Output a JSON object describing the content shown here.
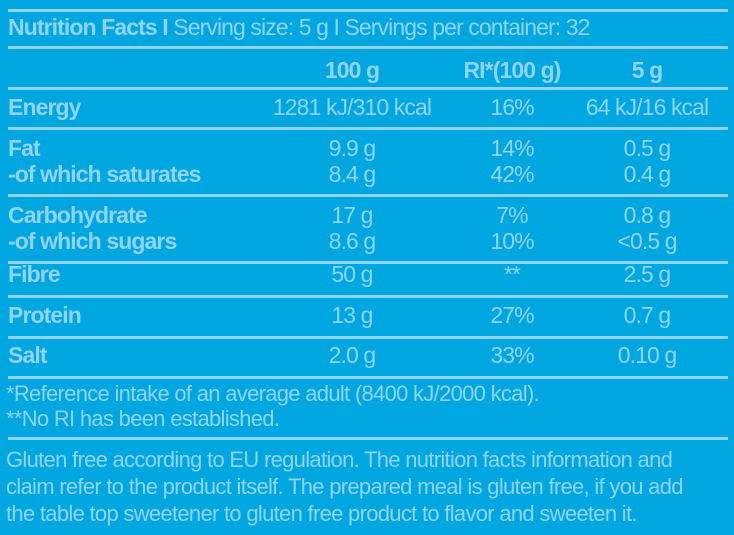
{
  "title": {
    "bold": "Nutrition Facts I",
    "rest": " Serving size: 5 g I Servings per container: 32"
  },
  "columns": [
    "100 g",
    "RI*(100 g)",
    "5 g"
  ],
  "rows": [
    {
      "label": "Energy",
      "v100": "1281 kJ/310 kcal",
      "ri": "16%",
      "v5": "64 kJ/16 kcal"
    },
    {
      "label": "Fat",
      "v100": "9.9 g",
      "ri": "14%",
      "v5": "0.5 g"
    },
    {
      "label": "-of which saturates",
      "v100": "8.4 g",
      "ri": "42%",
      "v5": "0.4 g"
    },
    {
      "label": "Carbohydrate",
      "v100": "17 g",
      "ri": "7%",
      "v5": "0.8 g"
    },
    {
      "label": "-of which sugars",
      "v100": "8.6 g",
      "ri": "10%",
      "v5": "<0.5 g"
    },
    {
      "label": "Fibre",
      "v100": "50 g",
      "ri": "**",
      "v5": "2.5 g"
    },
    {
      "label": "Protein",
      "v100": "13 g",
      "ri": "27%",
      "v5": "0.7 g"
    },
    {
      "label": "Salt",
      "v100": "2.0 g",
      "ri": "33%",
      "v5": "0.10 g"
    }
  ],
  "footnotes": [
    "*Reference intake of an average adult (8400 kJ/2000 kcal).",
    "**No RI has been established."
  ],
  "gluten": [
    "Gluten free according to EU regulation. The nutrition facts information and",
    "claim refer to the product itself. The prepared meal is gluten free, if you add",
    "the table top sweetener to gluten free product to flavor and sweeten it."
  ]
}
